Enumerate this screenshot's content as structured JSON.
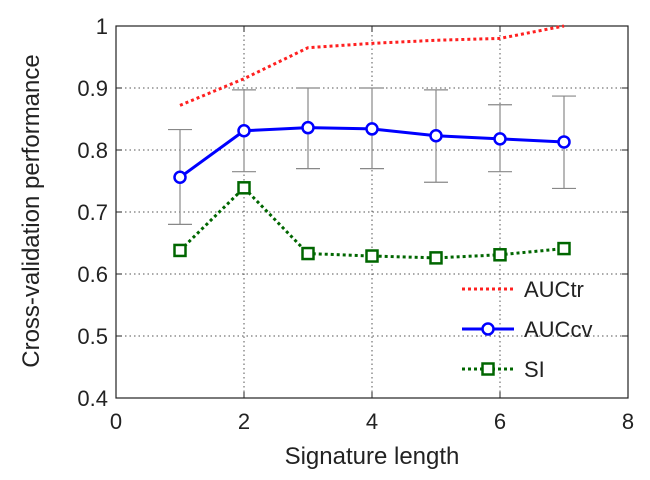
{
  "chart_data": {
    "type": "line",
    "xlabel": "Signature length",
    "ylabel": "Cross-validation performance",
    "xlim": [
      0,
      8
    ],
    "ylim": [
      0.4,
      1.0
    ],
    "xticks": [
      0,
      2,
      4,
      6,
      8
    ],
    "yticks": [
      0.4,
      0.5,
      0.6,
      0.7,
      0.8,
      0.9,
      1.0
    ],
    "xtick_labels": [
      "0",
      "2",
      "4",
      "6",
      "8"
    ],
    "ytick_labels": [
      "0.4",
      "0.5",
      "0.6",
      "0.7",
      "0.8",
      "0.9",
      "1"
    ],
    "grid": "dotted",
    "legend_position": "bottom-right",
    "series": [
      {
        "name": "AUCtr",
        "color": "#ff2020",
        "line_style": "dotted",
        "marker": "none",
        "x": [
          1,
          2,
          3,
          4,
          5,
          6,
          7
        ],
        "y": [
          0.872,
          0.915,
          0.965,
          0.972,
          0.977,
          0.98,
          1.0
        ]
      },
      {
        "name": "AUCcv",
        "color": "#0000ff",
        "line_style": "solid",
        "marker": "circle",
        "x": [
          1,
          2,
          3,
          4,
          5,
          6,
          7
        ],
        "y": [
          0.756,
          0.831,
          0.836,
          0.834,
          0.823,
          0.818,
          0.813
        ],
        "error_low": [
          0.68,
          0.765,
          0.77,
          0.77,
          0.748,
          0.765,
          0.738
        ],
        "error_high": [
          0.833,
          0.897,
          0.9,
          0.9,
          0.897,
          0.873,
          0.887
        ]
      },
      {
        "name": "SI",
        "color": "#006600",
        "line_style": "dotted",
        "marker": "square",
        "x": [
          1,
          2,
          3,
          4,
          5,
          6,
          7
        ],
        "y": [
          0.638,
          0.739,
          0.633,
          0.629,
          0.626,
          0.631,
          0.641
        ]
      }
    ]
  }
}
